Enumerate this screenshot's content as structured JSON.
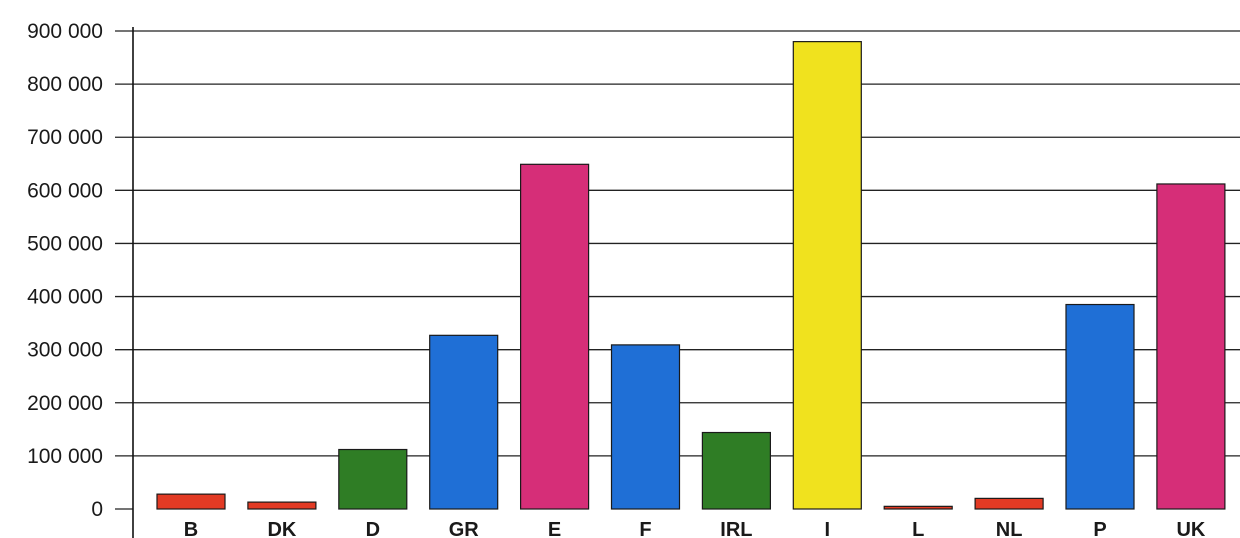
{
  "chart_data": {
    "type": "bar",
    "title": "",
    "xlabel": "",
    "ylabel": "",
    "ylim": [
      0,
      900000
    ],
    "yticks": [
      0,
      100000,
      200000,
      300000,
      400000,
      500000,
      600000,
      700000,
      800000,
      900000
    ],
    "ytick_labels": [
      "0",
      "100 000",
      "200 000",
      "300 000",
      "400 000",
      "500 000",
      "600 000",
      "700 000",
      "800 000",
      "900 000"
    ],
    "grid": true,
    "categories": [
      "B",
      "DK",
      "D",
      "GR",
      "E",
      "F",
      "IRL",
      "I",
      "L",
      "NL",
      "P",
      "UK"
    ],
    "values": [
      28000,
      13000,
      112000,
      327000,
      649000,
      309000,
      144000,
      880000,
      5000,
      20000,
      385000,
      612000
    ],
    "colors": [
      "#e23a24",
      "#e23a24",
      "#2f7d25",
      "#1f6fd6",
      "#d62e78",
      "#1f6fd6",
      "#2f7d25",
      "#f0e21e",
      "#e23a24",
      "#e23a24",
      "#1f6fd6",
      "#d62e78"
    ]
  }
}
